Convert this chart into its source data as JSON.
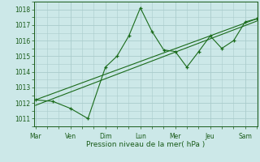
{
  "background_color": "#cce8e8",
  "grid_color": "#aacccc",
  "line_color": "#1a6b1a",
  "text_color": "#1a5c1a",
  "xlabel": "Pression niveau de la mer( hPa )",
  "ylim": [
    1010.5,
    1018.5
  ],
  "yticks": [
    1011,
    1012,
    1013,
    1014,
    1015,
    1016,
    1017,
    1018
  ],
  "day_labels": [
    "Mar",
    "Ven",
    "Dim",
    "Lun",
    "Mer",
    "Jeu",
    "Sam"
  ],
  "day_positions": [
    0,
    1,
    2,
    3,
    4,
    5,
    6
  ],
  "xlim": [
    -0.05,
    6.35
  ],
  "jagged_x": [
    0.0,
    0.5,
    1.0,
    1.5,
    2.0,
    2.33,
    2.67,
    3.0,
    3.33,
    3.67,
    4.0,
    4.33,
    4.67,
    5.0,
    5.33,
    5.67,
    6.0,
    6.33
  ],
  "jagged_y": [
    1012.2,
    1012.1,
    1011.65,
    1011.0,
    1014.3,
    1015.0,
    1016.3,
    1018.1,
    1016.6,
    1015.4,
    1015.3,
    1014.3,
    1015.3,
    1016.3,
    1015.5,
    1016.0,
    1017.2,
    1017.4
  ],
  "trend1_x": [
    0.0,
    6.33
  ],
  "trend1_y": [
    1011.85,
    1017.25
  ],
  "trend2_x": [
    0.0,
    6.33
  ],
  "trend2_y": [
    1012.2,
    1017.4
  ]
}
